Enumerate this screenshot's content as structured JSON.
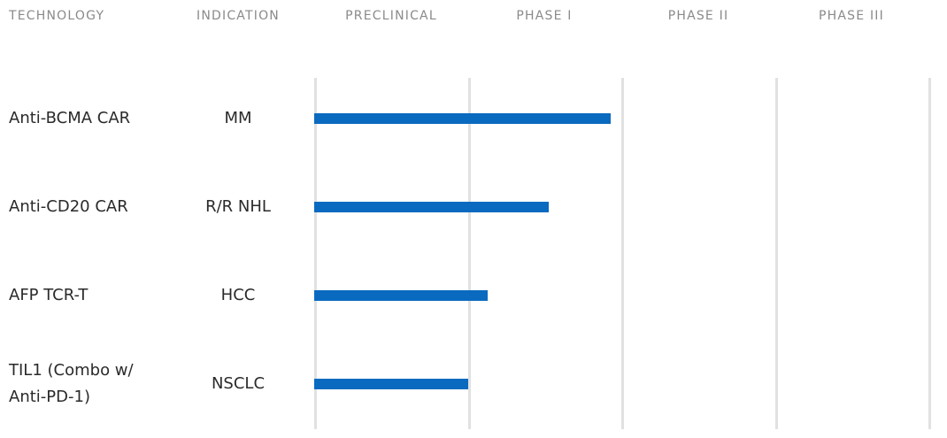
{
  "headers": {
    "technology": "TECHNOLOGY",
    "indication": "INDICATION",
    "preclinical": "PRECLINICAL",
    "phase1": "PHASE I",
    "phase2": "PHASE II",
    "phase3": "PHASE III"
  },
  "colors": {
    "bar": "#0a6abf",
    "gridline": "#e1e1e1",
    "header_text": "#8a8a8a",
    "row_text": "#2a2a2a"
  },
  "chart_data": {
    "type": "bar",
    "orientation": "horizontal",
    "stages": [
      "PRECLINICAL",
      "PHASE I",
      "PHASE II",
      "PHASE III"
    ],
    "xlim": [
      0,
      4
    ],
    "grid": true,
    "rows": [
      {
        "technology_lines": [
          "Anti-BCMA CAR"
        ],
        "indication": "MM",
        "value": 1.93
      },
      {
        "technology_lines": [
          "Anti-CD20 CAR"
        ],
        "indication": "R/R NHL",
        "value": 1.53
      },
      {
        "technology_lines": [
          "AFP TCR-T"
        ],
        "indication": "HCC",
        "value": 1.13
      },
      {
        "technology_lines": [
          "TIL1 (Combo w/",
          "Anti-PD-1)"
        ],
        "indication": "NSCLC",
        "value": 1.0
      }
    ]
  }
}
